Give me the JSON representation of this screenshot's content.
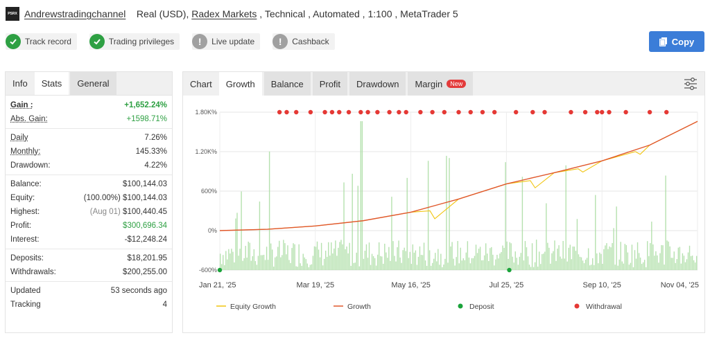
{
  "header": {
    "logo_text": "PSRX",
    "account_name": "Andrewstradingchannel",
    "account_type": "Real (USD),",
    "broker": "Radex Markets",
    "details": ", Technical , Automated , 1:100 , MetaTrader 5"
  },
  "badges": [
    {
      "label": "Track record",
      "status": "ok"
    },
    {
      "label": "Trading privileges",
      "status": "ok"
    },
    {
      "label": "Live update",
      "status": "warn"
    },
    {
      "label": "Cashback",
      "status": "warn"
    }
  ],
  "copy_button": {
    "label": "Copy"
  },
  "left_tabs": {
    "info": "Info",
    "stats": "Stats",
    "general": "General"
  },
  "stats": {
    "gain_label": "Gain :",
    "gain_value": "+1,652.24%",
    "abs_gain_label": "Abs. Gain:",
    "abs_gain_value": "+1598.71%",
    "daily_label": "Daily",
    "daily_value": "7.26%",
    "monthly_label": "Monthly:",
    "monthly_value": "145.33%",
    "drawdown_label": "Drawdown:",
    "drawdown_value": "4.22%",
    "balance_label": "Balance:",
    "balance_value": "$100,144.03",
    "equity_label": "Equity:",
    "equity_pct": "(100.00%)",
    "equity_value": "$100,144.03",
    "highest_label": "Highest:",
    "highest_date": "(Aug 01)",
    "highest_value": "$100,440.45",
    "profit_label": "Profit:",
    "profit_value": "$300,696.34",
    "interest_label": "Interest:",
    "interest_value": "-$12,248.24",
    "deposits_label": "Deposits:",
    "deposits_value": "$18,201.95",
    "withdrawals_label": "Withdrawals:",
    "withdrawals_value": "$200,255.00",
    "updated_label": "Updated",
    "updated_value": "53 seconds ago",
    "tracking_label": "Tracking",
    "tracking_value": "4"
  },
  "chart_tabs": {
    "chart": "Chart",
    "growth": "Growth",
    "balance": "Balance",
    "profit": "Profit",
    "drawdown": "Drawdown",
    "margin": "Margin",
    "new_badge": "New"
  },
  "colors": {
    "growth": "#e0572b",
    "equity": "#f1c40f",
    "bars": "#a8dca0",
    "deposit": "#1aa33a",
    "withdrawal": "#e53935",
    "accent": "#3b7dd8"
  },
  "chart_data": {
    "type": "line",
    "x_ticks": [
      "Jan 21, '25",
      "Mar 19, '25",
      "May 16, '25",
      "Jul 25, '25",
      "Sep 10, '25",
      "Nov 04, '25"
    ],
    "y_ticks": [
      "1.80K%",
      "1.20K%",
      "600%",
      "0%",
      "-600%"
    ],
    "ylim": [
      -600,
      1800
    ],
    "legend": [
      "Equity Growth",
      "Growth",
      "Deposit",
      "Withdrawal"
    ],
    "series": [
      {
        "name": "Growth",
        "x": [
          0,
          0.1,
          0.2,
          0.3,
          0.4,
          0.5,
          0.6,
          0.7,
          0.8,
          0.9,
          1.0
        ],
        "values": [
          0,
          20,
          70,
          150,
          280,
          480,
          710,
          880,
          1060,
          1300,
          1660
        ]
      },
      {
        "name": "Equity Growth",
        "x": [
          0,
          0.1,
          0.2,
          0.3,
          0.4,
          0.44,
          0.45,
          0.5,
          0.6,
          0.65,
          0.66,
          0.7,
          0.75,
          0.76,
          0.8,
          0.87,
          0.88,
          0.9,
          1.0
        ],
        "values": [
          0,
          20,
          70,
          150,
          280,
          300,
          180,
          480,
          710,
          760,
          650,
          880,
          940,
          890,
          1060,
          1200,
          1160,
          1300,
          1660
        ]
      }
    ],
    "deposits_x": [
      0.0,
      0.606
    ],
    "withdrawals_x": [
      0.125,
      0.14,
      0.16,
      0.19,
      0.22,
      0.235,
      0.25,
      0.27,
      0.295,
      0.31,
      0.33,
      0.355,
      0.375,
      0.39,
      0.42,
      0.445,
      0.47,
      0.5,
      0.525,
      0.55,
      0.575,
      0.62,
      0.655,
      0.68,
      0.735,
      0.765,
      0.79,
      0.8,
      0.815,
      0.85,
      0.9,
      0.935
    ]
  }
}
